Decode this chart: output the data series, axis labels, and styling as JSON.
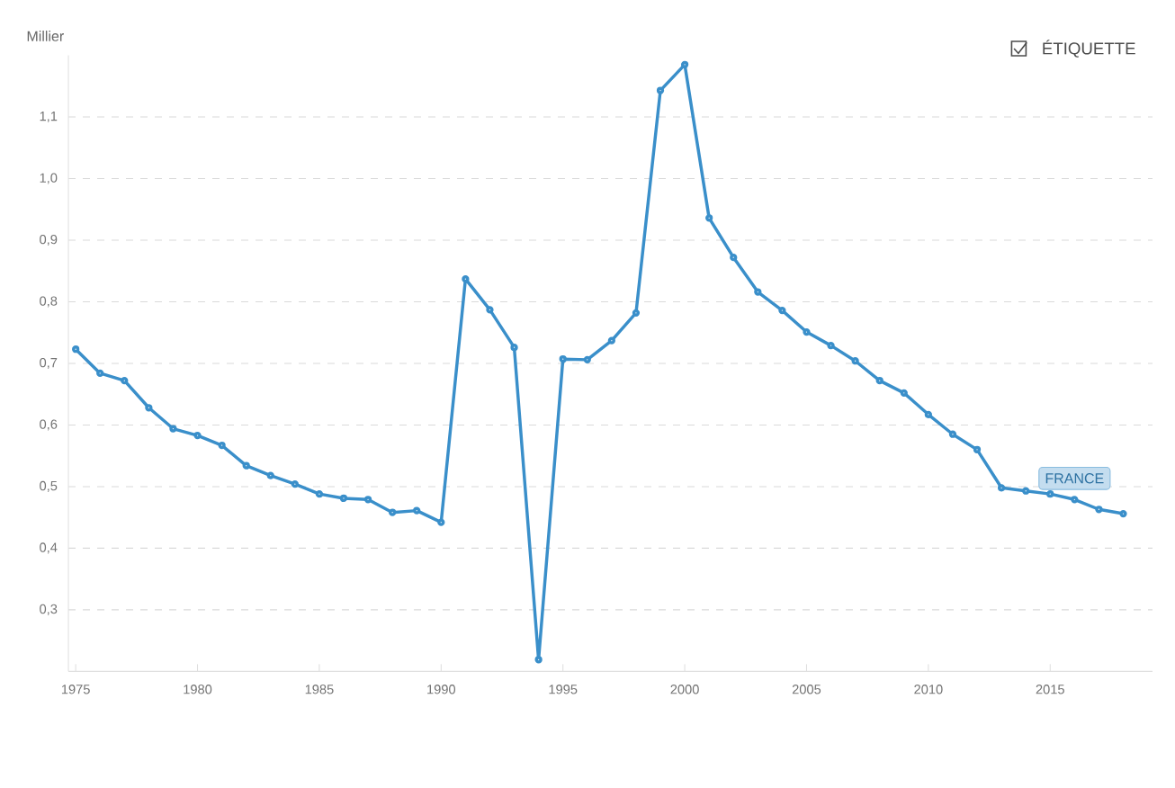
{
  "chart_data": {
    "type": "line",
    "ylabel": "Millier",
    "annotations": [
      "ÉTIQUETTE"
    ],
    "x": [
      1975,
      1976,
      1977,
      1978,
      1979,
      1980,
      1981,
      1982,
      1983,
      1984,
      1985,
      1986,
      1987,
      1988,
      1989,
      1990,
      1991,
      1992,
      1993,
      1994,
      1995,
      1996,
      1997,
      1998,
      1999,
      2000,
      2001,
      2002,
      2003,
      2004,
      2005,
      2006,
      2007,
      2008,
      2009,
      2010,
      2011,
      2012,
      2013,
      2014,
      2015,
      2016,
      2017,
      2018
    ],
    "series": [
      {
        "name": "FRANCE",
        "color": "#3a8fca",
        "values": [
          0.723,
          0.684,
          0.672,
          0.628,
          0.594,
          0.583,
          0.567,
          0.534,
          0.518,
          0.504,
          0.488,
          0.481,
          0.479,
          0.458,
          0.461,
          0.442,
          0.837,
          0.787,
          0.726,
          0.219,
          0.707,
          0.706,
          0.737,
          0.782,
          1.143,
          1.185,
          0.936,
          0.872,
          0.816,
          0.786,
          0.751,
          0.729,
          0.704,
          0.672,
          0.652,
          0.617,
          0.585,
          0.56,
          0.498,
          0.493,
          0.488,
          0.479,
          0.463,
          0.456
        ]
      }
    ],
    "xlim": [
      1974.7,
      2019.2
    ],
    "ylim": [
      0.2,
      1.2
    ],
    "xticks": [
      1975,
      1980,
      1985,
      1990,
      1995,
      2000,
      2005,
      2010,
      2015
    ],
    "yticks": [
      {
        "value": 0.3,
        "label": "0,3"
      },
      {
        "value": 0.4,
        "label": "0,4"
      },
      {
        "value": 0.5,
        "label": "0,5"
      },
      {
        "value": 0.6,
        "label": "0,6"
      },
      {
        "value": 0.7,
        "label": "0,7"
      },
      {
        "value": 0.8,
        "label": "0,8"
      },
      {
        "value": 0.9,
        "label": "0,9"
      },
      {
        "value": 1.0,
        "label": "1,0"
      },
      {
        "value": 1.1,
        "label": "1,1"
      }
    ],
    "grid": "y",
    "legend": false,
    "marker": "circle",
    "line_style": "solid"
  }
}
